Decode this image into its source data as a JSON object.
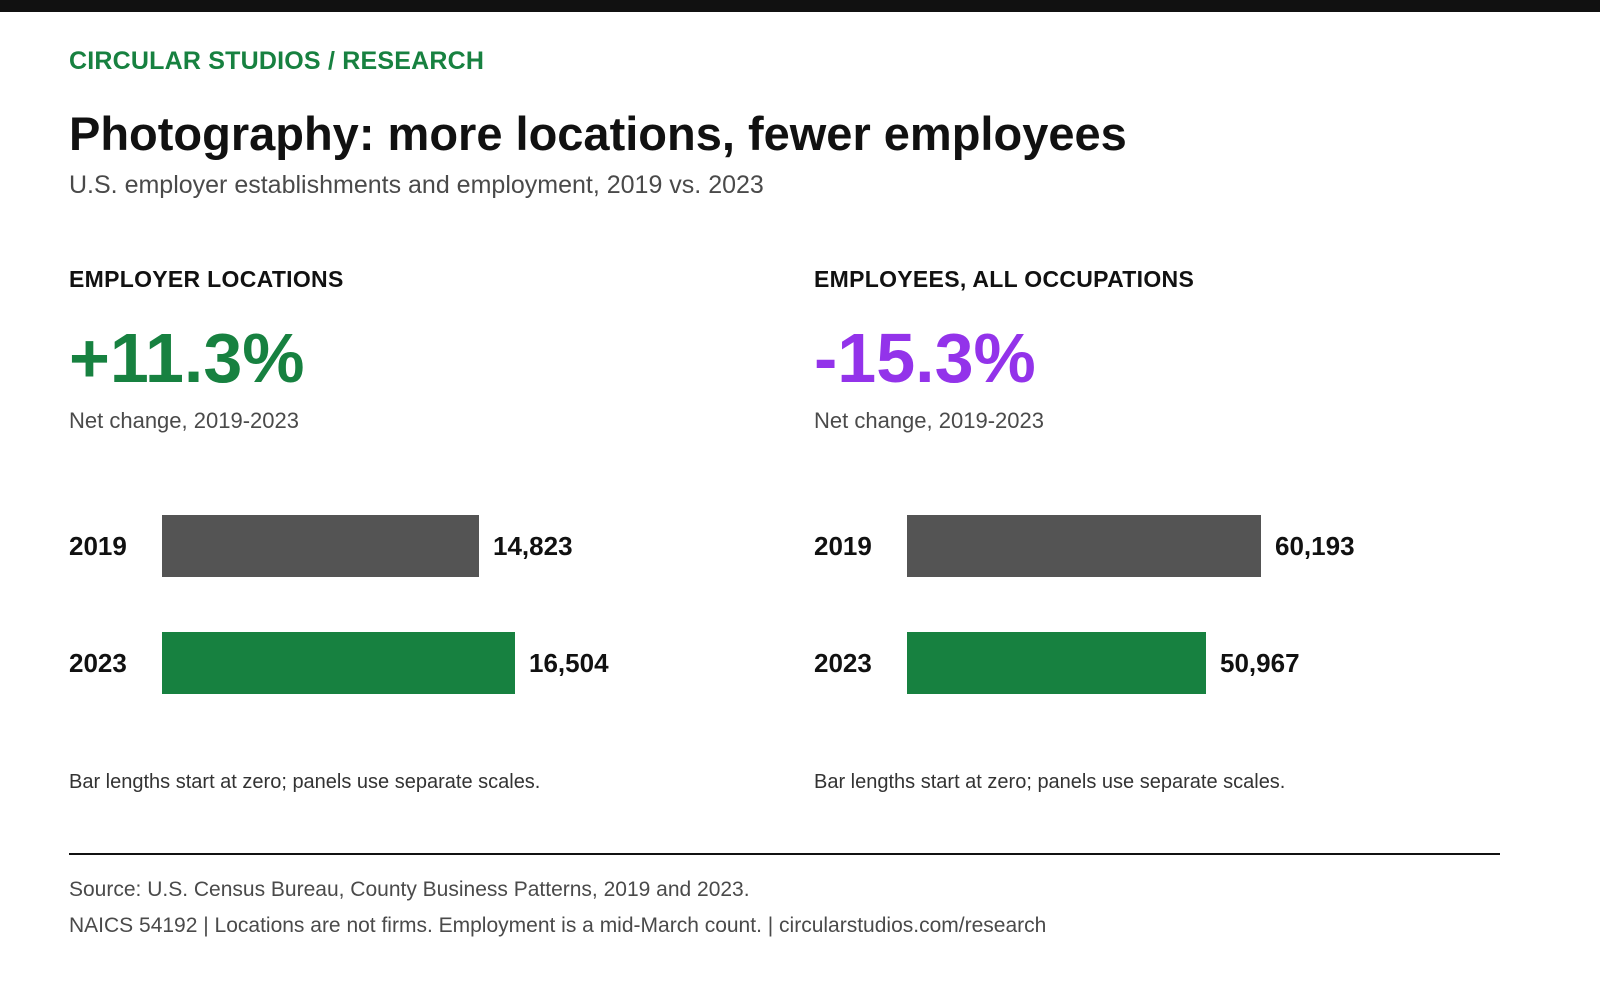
{
  "header": {
    "kicker": "CIRCULAR STUDIOS / RESEARCH",
    "title": "Photography: more locations, fewer employees",
    "subtitle": "U.S. employer establishments and employment, 2019 vs. 2023"
  },
  "colors": {
    "brand_green": "#178140",
    "bar_2019": "#545454",
    "bar_2023": "#178140",
    "decline_purple": "#9333ea",
    "text": "#111111",
    "muted": "#4a4a4a"
  },
  "chart_data": [
    {
      "type": "bar",
      "orientation": "horizontal",
      "title": "EMPLOYER LOCATIONS",
      "headline_change": "+11.3%",
      "headline_color": "#178140",
      "headline_label": "Net change, 2019-2023",
      "categories": [
        "2019",
        "2023"
      ],
      "values": [
        14823,
        16504
      ],
      "value_labels": [
        "14,823",
        "16,504"
      ],
      "xlim": [
        0,
        22000
      ],
      "note": "Bar lengths start at zero; panels use separate scales.",
      "grid": false
    },
    {
      "type": "bar",
      "orientation": "horizontal",
      "title": "EMPLOYEES, ALL OCCUPATIONS",
      "headline_change": "-15.3%",
      "headline_color": "#9333ea",
      "headline_label": "Net change, 2019-2023",
      "categories": [
        "2019",
        "2023"
      ],
      "values": [
        60193,
        50967
      ],
      "value_labels": [
        "60,193",
        "50,967"
      ],
      "xlim": [
        0,
        80000
      ],
      "note": "Bar lengths start at zero; panels use separate scales.",
      "grid": false
    }
  ],
  "footer": {
    "source": "Source: U.S. Census Bureau, County Business Patterns, 2019 and 2023.",
    "note": "NAICS 54192 | Locations are not firms. Employment is a mid-March count. | circularstudios.com/research"
  }
}
